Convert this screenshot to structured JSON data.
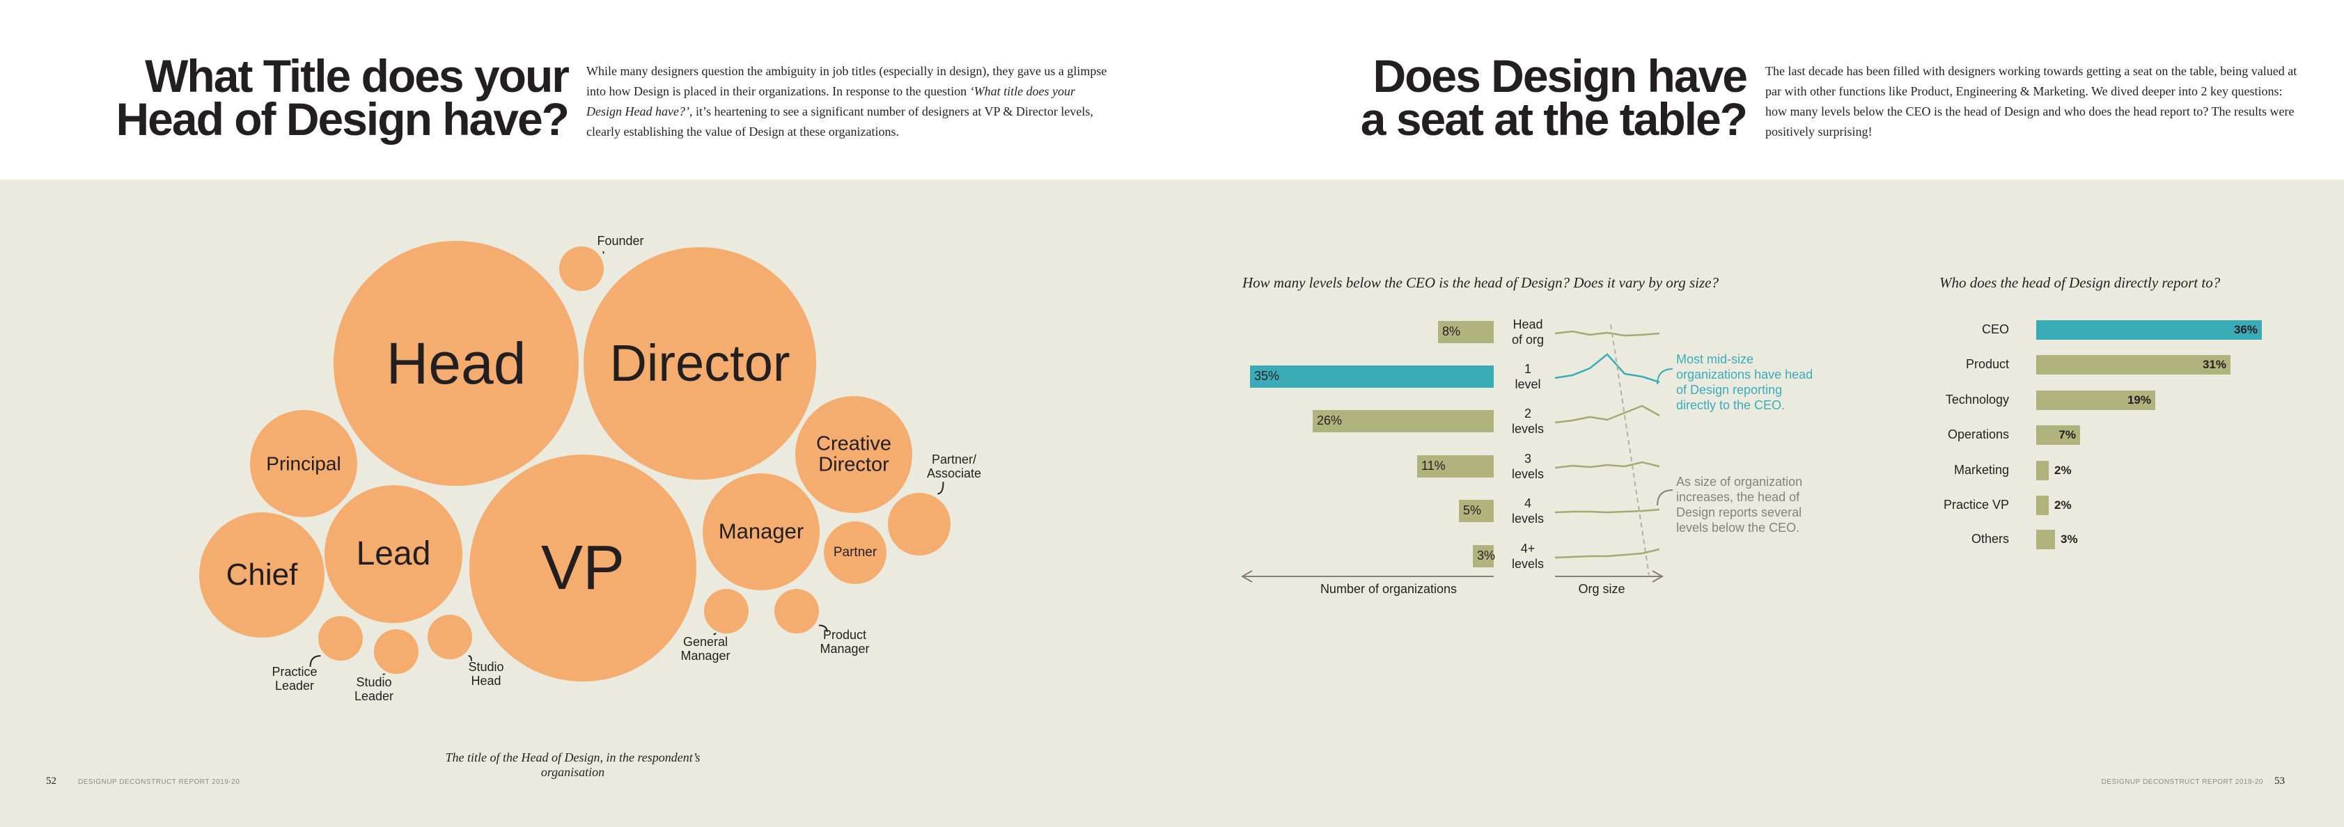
{
  "left_page": {
    "title": [
      "What Title does your",
      "Head of Design have?"
    ],
    "paragraph": [
      "While many designers question the ambiguity in job titles (especially in design), they gave us a glimpse into how Design is placed in their organizations. In response to the question ",
      "‘What title does your Design Head have?’",
      ", it’s heartening to see a significant number of designers at VP & Director levels, clearly establishing the value of Design at these organizations."
    ],
    "bubbles": [
      "Head",
      "Director",
      "VP",
      "Principal",
      "Lead",
      "Chief",
      "Creative\nDirector",
      "Manager",
      "Partner",
      "Founder",
      "Partner/\nAssociate",
      "General\nManager",
      "Product\nManager",
      "Practice\nLeader",
      "Studio\nLeader",
      "Studio\nHead"
    ],
    "caption": "The title of the Head of Design, in the respondent’s organisation",
    "page_number": "52",
    "footer": "DESIGNUP DECONSTRUCT REPORT 2019-20"
  },
  "right_page": {
    "title": [
      "Does Design have",
      "a seat at the table?"
    ],
    "paragraph": "The last decade has been filled with designers working towards getting a seat on the table, being valued at par with other functions like Product, Engineering & Marketing. We dived deeper into 2 key questions: how many levels below the CEO is the head of Design and who does the head report to? The results were positively surprising!",
    "page_number": "53",
    "footer": "DESIGNUP DECONSTRUCT REPORT 2019-20"
  },
  "chart_data": [
    {
      "type": "bar",
      "orientation": "horizontal",
      "title": "How many levels below the CEO is the head of Design? Does it vary by org size?",
      "categories": [
        "Head\nof org",
        "1\nlevel",
        "2\nlevels",
        "3\nlevels",
        "4\nlevels",
        "4+\nlevels"
      ],
      "values": [
        8,
        35,
        26,
        11,
        5,
        3
      ],
      "value_labels": [
        "8%",
        "35%",
        "26%",
        "11%",
        "5%",
        "3%"
      ],
      "colors": [
        "#b1b37c",
        "#3aacb8",
        "#b1b37c",
        "#b1b37c",
        "#b1b37c",
        "#b1b37c"
      ],
      "x_label": "Number of organizations",
      "trend_label": "Org size",
      "annotations": [
        "Most mid-size organizations have head of Design reporting directly to the CEO.",
        "As size of organization increases, the head of Design reports several levels below the CEO."
      ]
    },
    {
      "type": "bar",
      "orientation": "horizontal",
      "title": "Who does the head of Design directly report to?",
      "categories": [
        "CEO",
        "Product",
        "Technology",
        "Operations",
        "Marketing",
        "Practice VP",
        "Others"
      ],
      "values": [
        36,
        31,
        19,
        7,
        2,
        2,
        3
      ],
      "value_labels": [
        "36%",
        "31%",
        "19%",
        "7%",
        "2%",
        "2%",
        "3%"
      ],
      "colors": [
        "#3aacb8",
        "#b1b37c",
        "#b1b37c",
        "#b1b37c",
        "#b1b37c",
        "#b1b37c",
        "#b1b37c"
      ]
    }
  ]
}
